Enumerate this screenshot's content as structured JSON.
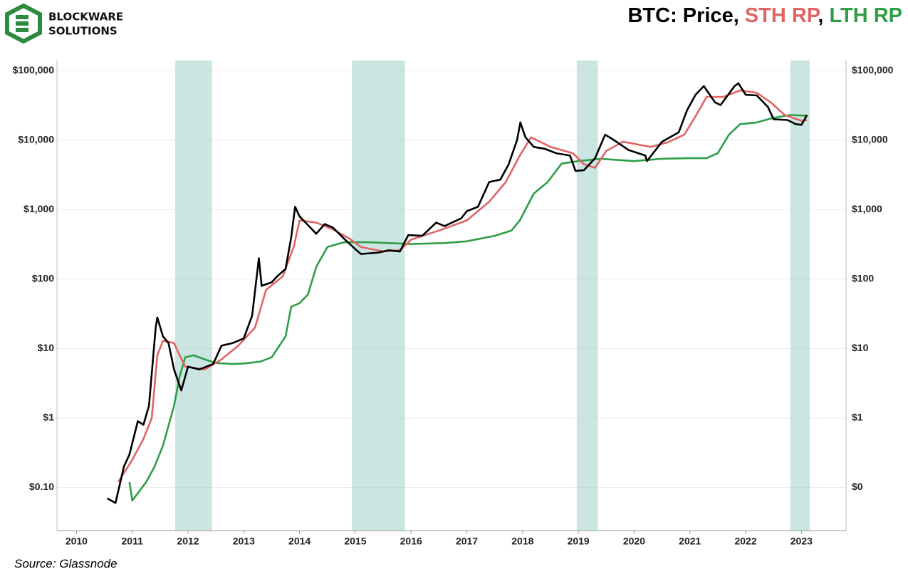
{
  "chart_data": {
    "type": "line",
    "logo": {
      "line1": "BLOCKWARE",
      "line2": "SOLUTIONS"
    },
    "title_prefix": "BTC:",
    "title_separator": ",",
    "source": "Source: Glassnode",
    "log_scale": true,
    "grid": true,
    "xlim": [
      2009.65,
      2023.8
    ],
    "xticks": [
      2010,
      2011,
      2012,
      2013,
      2014,
      2015,
      2016,
      2017,
      2018,
      2019,
      2020,
      2021,
      2022,
      2023
    ],
    "ylim": [
      0.024,
      140000
    ],
    "yticks": [
      {
        "value": 0.1,
        "label": "$0.10"
      },
      {
        "value": 1,
        "label": "$1"
      },
      {
        "value": 10,
        "label": "$10"
      },
      {
        "value": 100,
        "label": "$100"
      },
      {
        "value": 1000,
        "label": "$1,000"
      },
      {
        "value": 10000,
        "label": "$10,000"
      },
      {
        "value": 100000,
        "label": "$100,000"
      }
    ],
    "y2lim": [
      0.024,
      140000
    ],
    "y2ticks": [
      {
        "value": 0.1,
        "label": "$0"
      },
      {
        "value": 1,
        "label": "$1"
      },
      {
        "value": 10,
        "label": "$10"
      },
      {
        "value": 100,
        "label": "$100"
      },
      {
        "value": 1000,
        "label": "$1,000"
      },
      {
        "value": 10000,
        "label": "$10,000"
      },
      {
        "value": 100000,
        "label": "$100,000"
      }
    ],
    "shaded_color": "#a9d6cf",
    "shaded_regions": [
      [
        2011.77,
        2012.43
      ],
      [
        2014.94,
        2015.89
      ],
      [
        2018.97,
        2019.35
      ],
      [
        2022.8,
        2023.15
      ]
    ],
    "series": [
      {
        "name": "Price",
        "color": "#000000",
        "x": [
          2010.55,
          2010.7,
          2010.85,
          2010.95,
          2011.1,
          2011.2,
          2011.3,
          2011.42,
          2011.45,
          2011.55,
          2011.65,
          2011.75,
          2011.88,
          2012.0,
          2012.2,
          2012.45,
          2012.6,
          2012.8,
          2013.0,
          2013.15,
          2013.27,
          2013.32,
          2013.5,
          2013.6,
          2013.75,
          2013.85,
          2013.92,
          2014.0,
          2014.15,
          2014.3,
          2014.45,
          2014.6,
          2014.8,
          2015.0,
          2015.1,
          2015.4,
          2015.6,
          2015.8,
          2015.95,
          2016.2,
          2016.45,
          2016.6,
          2016.9,
          2017.0,
          2017.2,
          2017.4,
          2017.6,
          2017.75,
          2017.9,
          2017.96,
          2018.05,
          2018.2,
          2018.4,
          2018.6,
          2018.85,
          2018.95,
          2019.1,
          2019.3,
          2019.48,
          2019.6,
          2019.9,
          2020.2,
          2020.23,
          2020.5,
          2020.8,
          2020.95,
          2021.1,
          2021.25,
          2021.45,
          2021.55,
          2021.8,
          2021.87,
          2022.0,
          2022.2,
          2022.4,
          2022.5,
          2022.75,
          2022.9,
          2023.0,
          2023.1
        ],
        "values": [
          0.07,
          0.06,
          0.2,
          0.3,
          0.9,
          0.8,
          1.5,
          20,
          28,
          15,
          12,
          5,
          2.5,
          5.5,
          5,
          6,
          11,
          12,
          14,
          30,
          200,
          80,
          90,
          110,
          140,
          400,
          1100,
          800,
          600,
          450,
          620,
          550,
          380,
          270,
          230,
          240,
          260,
          250,
          430,
          420,
          650,
          580,
          750,
          950,
          1100,
          2500,
          2700,
          4500,
          10000,
          18000,
          11000,
          8000,
          7500,
          6500,
          6000,
          3600,
          3700,
          5500,
          12000,
          10500,
          7200,
          6000,
          5000,
          9500,
          13000,
          27000,
          45000,
          60000,
          35000,
          32000,
          60000,
          66000,
          45000,
          44000,
          30000,
          20000,
          19500,
          17000,
          16600,
          23000
        ]
      },
      {
        "name": "STH RP",
        "color": "#e06464",
        "x": [
          2010.75,
          2011.0,
          2011.2,
          2011.35,
          2011.45,
          2011.55,
          2011.75,
          2011.85,
          2011.95,
          2012.3,
          2012.6,
          2012.9,
          2013.2,
          2013.4,
          2013.7,
          2013.9,
          2014.0,
          2014.3,
          2014.6,
          2014.9,
          2015.1,
          2015.5,
          2015.8,
          2016.0,
          2016.5,
          2017.0,
          2017.4,
          2017.7,
          2017.95,
          2018.15,
          2018.5,
          2018.9,
          2019.1,
          2019.3,
          2019.5,
          2019.8,
          2020.3,
          2020.6,
          2020.9,
          2021.1,
          2021.3,
          2021.6,
          2021.9,
          2022.2,
          2022.45,
          2022.7,
          2023.0,
          2023.1
        ],
        "values": [
          0.12,
          0.25,
          0.5,
          1.0,
          8,
          13,
          12,
          8,
          5.5,
          5,
          7,
          11,
          20,
          70,
          110,
          300,
          700,
          650,
          520,
          380,
          290,
          250,
          260,
          370,
          500,
          700,
          1300,
          2500,
          6000,
          11000,
          8000,
          6500,
          4500,
          4000,
          7000,
          9500,
          8000,
          9300,
          12000,
          22000,
          42000,
          42000,
          52000,
          48000,
          35000,
          23000,
          19000,
          19500
        ]
      },
      {
        "name": "LTH RP",
        "color": "#2f9e45",
        "x": [
          2010.95,
          2011.0,
          2011.25,
          2011.4,
          2011.55,
          2011.75,
          2011.85,
          2011.95,
          2012.1,
          2012.3,
          2012.5,
          2012.8,
          2013.0,
          2013.3,
          2013.5,
          2013.75,
          2013.85,
          2014.0,
          2014.15,
          2014.3,
          2014.5,
          2014.8,
          2015.2,
          2015.6,
          2016.0,
          2016.6,
          2017.0,
          2017.5,
          2017.8,
          2017.95,
          2018.2,
          2018.45,
          2018.7,
          2019.0,
          2019.4,
          2020.0,
          2020.5,
          2021.0,
          2021.3,
          2021.5,
          2021.7,
          2021.9,
          2022.2,
          2022.5,
          2022.8,
          2023.1
        ],
        "values": [
          0.12,
          0.065,
          0.12,
          0.2,
          0.4,
          1.5,
          4,
          7.5,
          8,
          7,
          6.2,
          6,
          6.1,
          6.5,
          7.5,
          15,
          40,
          45,
          60,
          150,
          290,
          340,
          340,
          330,
          320,
          330,
          350,
          420,
          500,
          700,
          1700,
          2500,
          4600,
          5000,
          5400,
          5000,
          5400,
          5500,
          5500,
          6500,
          12000,
          17000,
          18000,
          21000,
          23000,
          22500
        ]
      }
    ]
  }
}
